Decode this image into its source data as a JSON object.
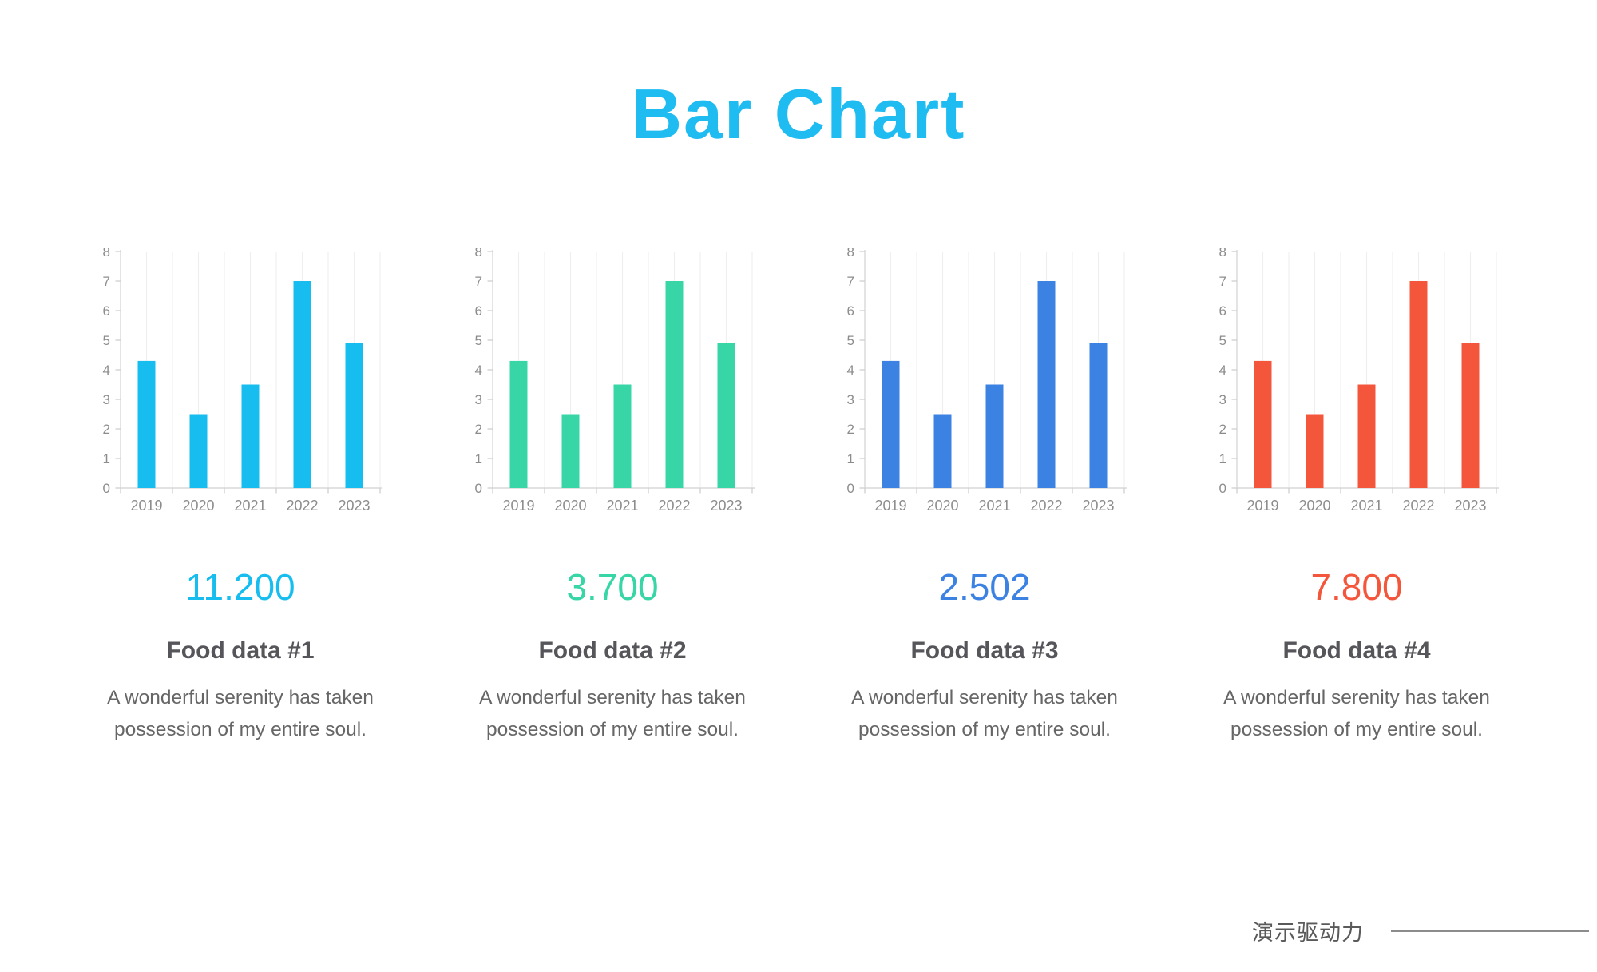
{
  "title": {
    "text": "Bar Chart",
    "color": "#1FBCF2"
  },
  "footer": {
    "brand_text": "演示驱动力"
  },
  "style": {
    "grid_color": "#efefef",
    "axis_color": "#d9d9d9",
    "tick_color": "#cfcfcf",
    "axis_label_color": "#8c8c8c"
  },
  "chart_data": [
    {
      "type": "bar",
      "categories": [
        "2019",
        "2020",
        "2021",
        "2022",
        "2023"
      ],
      "values": [
        4.3,
        2.5,
        3.5,
        7,
        4.9
      ],
      "ylim": [
        0,
        8
      ],
      "ytick_interval": 1,
      "grid": "vertical",
      "legend": "none",
      "color": "#17BDEE",
      "stat_value": "11.200",
      "heading": "Food data #1",
      "description": "A wonderful serenity has taken possession of my entire soul."
    },
    {
      "type": "bar",
      "categories": [
        "2019",
        "2020",
        "2021",
        "2022",
        "2023"
      ],
      "values": [
        4.3,
        2.5,
        3.5,
        7,
        4.9
      ],
      "ylim": [
        0,
        8
      ],
      "ytick_interval": 1,
      "grid": "vertical",
      "legend": "none",
      "color": "#38D6A6",
      "stat_value": "3.700",
      "heading": "Food data #2",
      "description": "A wonderful serenity has taken possession of my entire soul."
    },
    {
      "type": "bar",
      "categories": [
        "2019",
        "2020",
        "2021",
        "2022",
        "2023"
      ],
      "values": [
        4.3,
        2.5,
        3.5,
        7,
        4.9
      ],
      "ylim": [
        0,
        8
      ],
      "ytick_interval": 1,
      "grid": "vertical",
      "legend": "none",
      "color": "#3C82E2",
      "stat_value": "2.502",
      "heading": "Food data #3",
      "description": "A wonderful serenity has taken possession of my entire soul."
    },
    {
      "type": "bar",
      "categories": [
        "2019",
        "2020",
        "2021",
        "2022",
        "2023"
      ],
      "values": [
        4.3,
        2.5,
        3.5,
        7,
        4.9
      ],
      "ylim": [
        0,
        8
      ],
      "ytick_interval": 1,
      "grid": "vertical",
      "legend": "none",
      "color": "#F4563C",
      "stat_value": "7.800",
      "heading": "Food data #4",
      "description": "A wonderful serenity has taken possession of my entire soul."
    }
  ]
}
